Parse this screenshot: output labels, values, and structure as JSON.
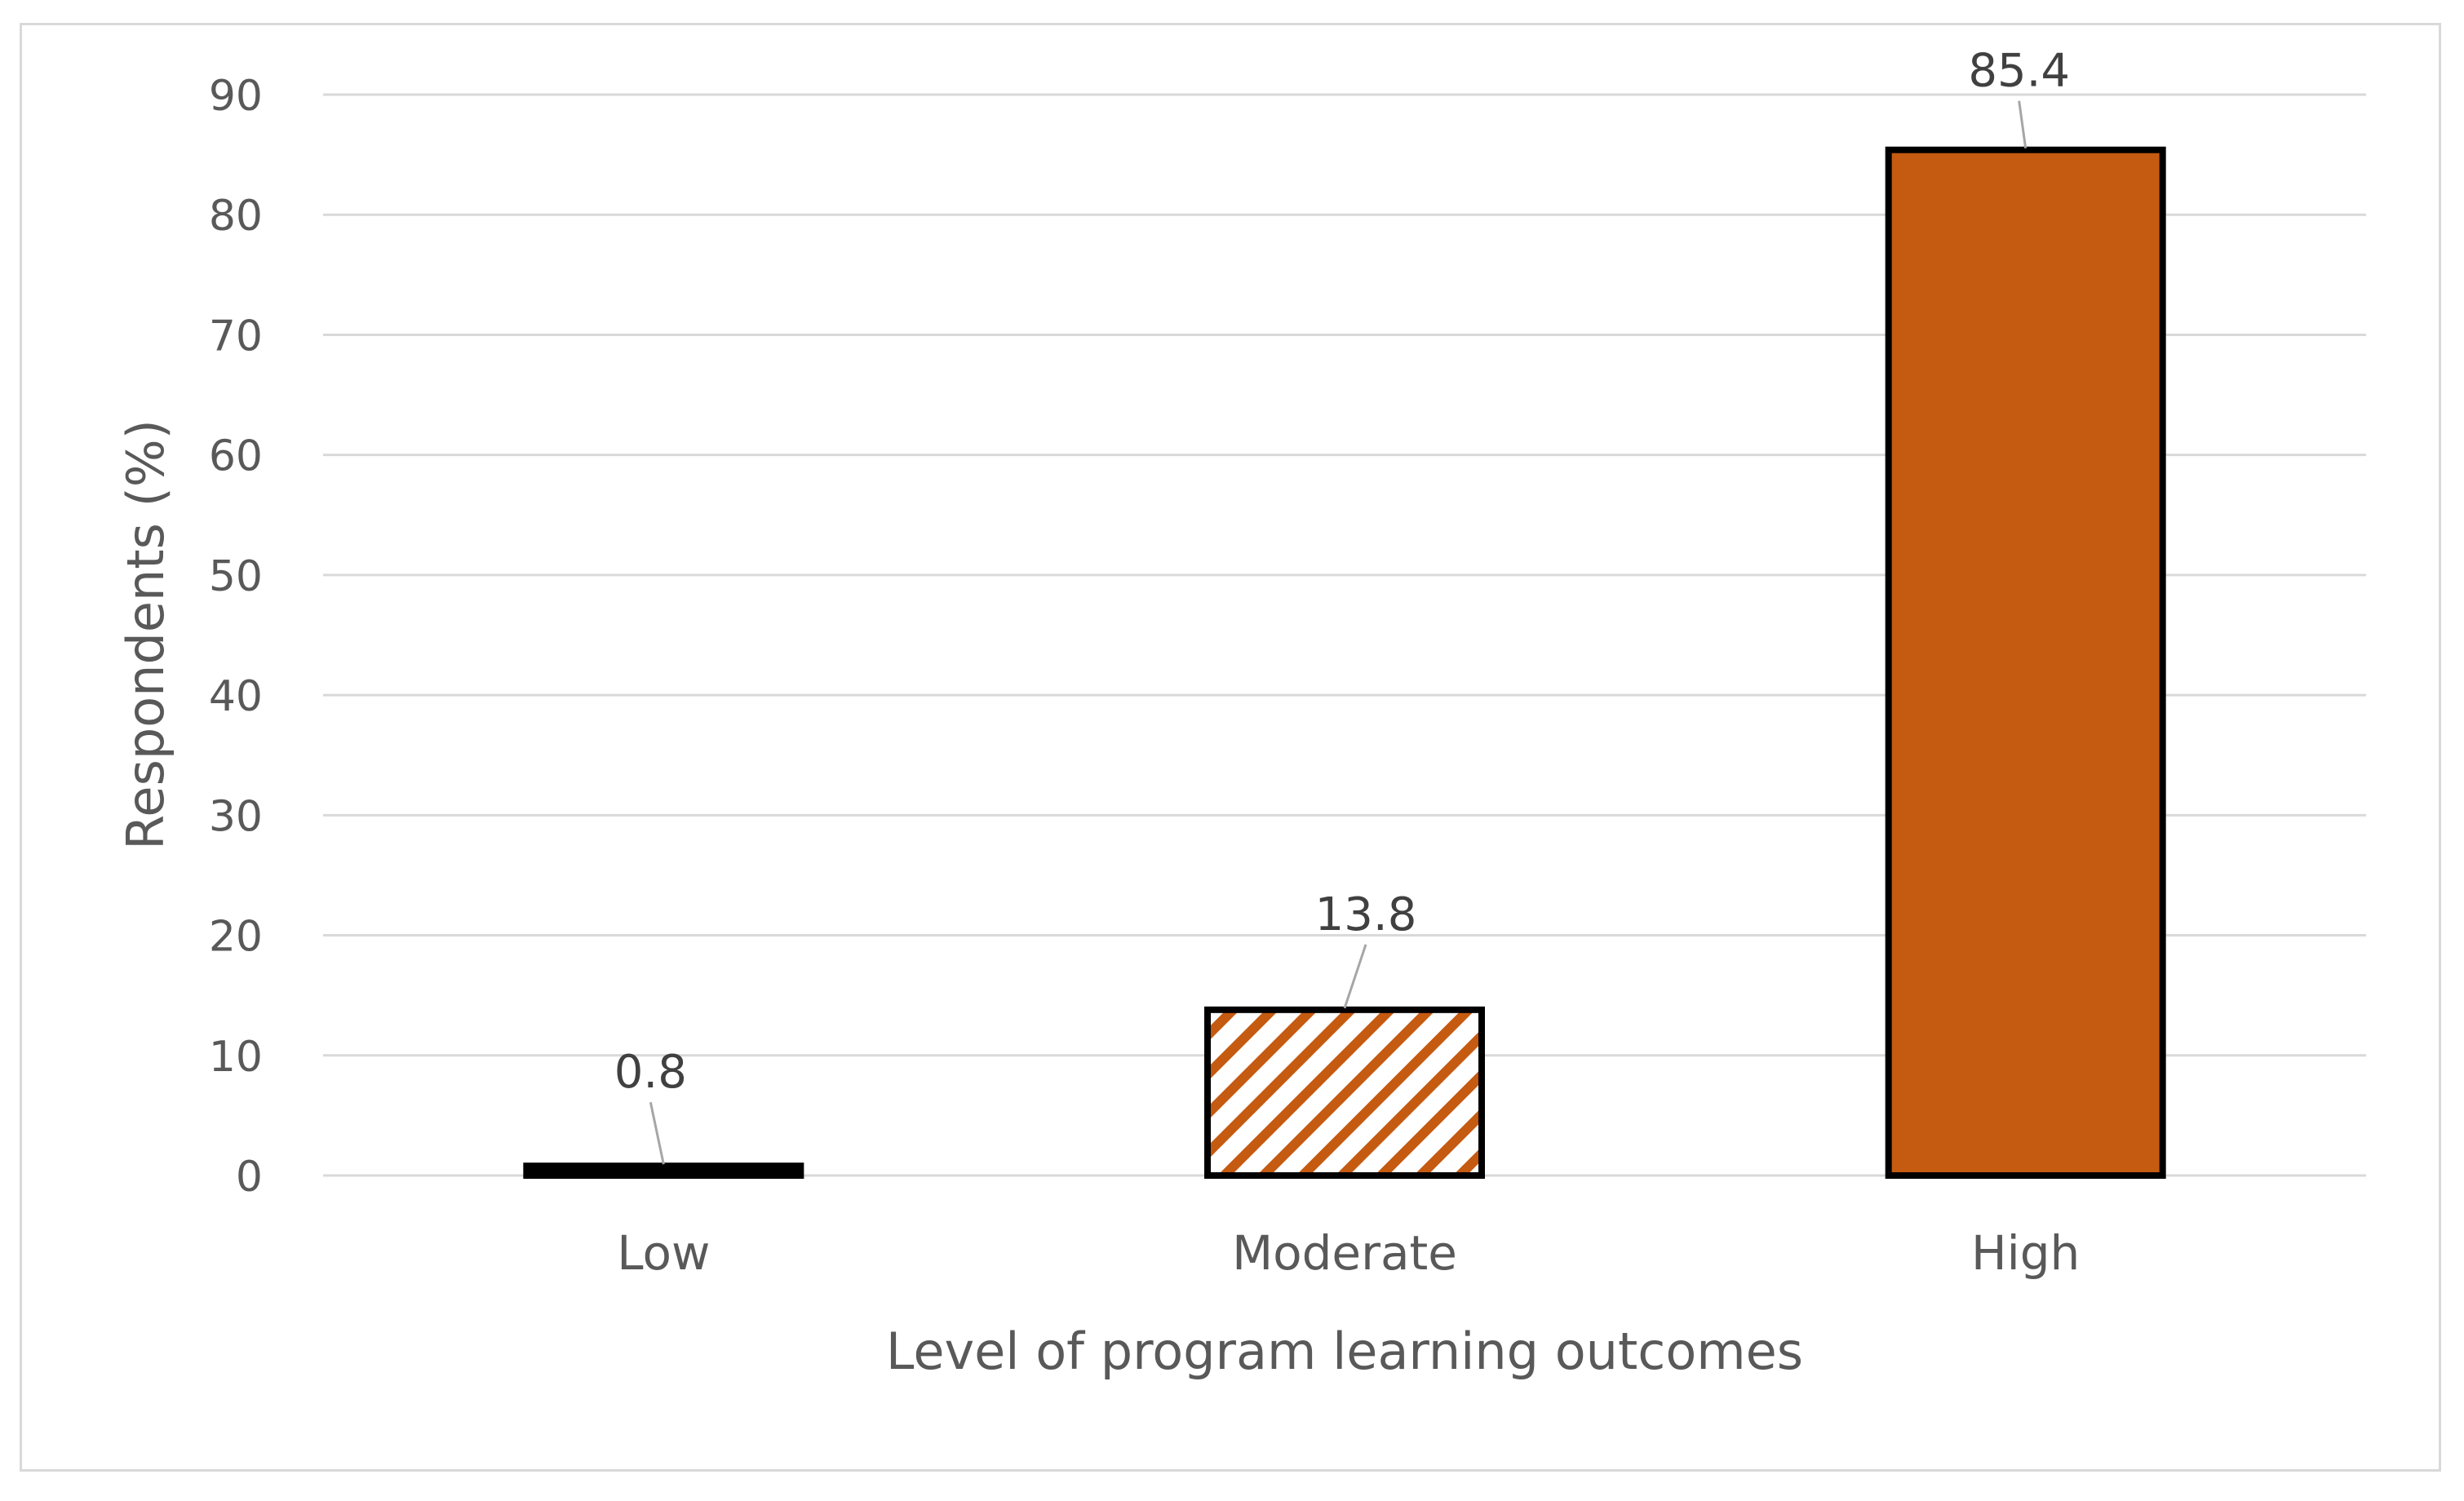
{
  "chart_data": {
    "type": "bar",
    "title": "",
    "categories": [
      "Low",
      "Moderate",
      "High"
    ],
    "values": [
      0.8,
      13.8,
      85.4
    ],
    "data_labels": [
      "0.8",
      "13.8",
      "85.4"
    ],
    "xlabel": "Level of program learning outcomes",
    "ylabel": "Respondents (%)",
    "ylim": [
      0,
      90
    ],
    "yticks": [
      0,
      10,
      20,
      30,
      40,
      50,
      60,
      70,
      80,
      90
    ],
    "grid": true,
    "legend": "none",
    "bar_styles": [
      "solid-black",
      "hatched",
      "solid"
    ],
    "colors": {
      "bar_fill": "#c55a11",
      "bar_outline": "#000000",
      "hatch_background": "#ffffff",
      "gridline": "#d9d9d9",
      "text": "#595959",
      "leader_line": "#a6a6a6"
    }
  }
}
